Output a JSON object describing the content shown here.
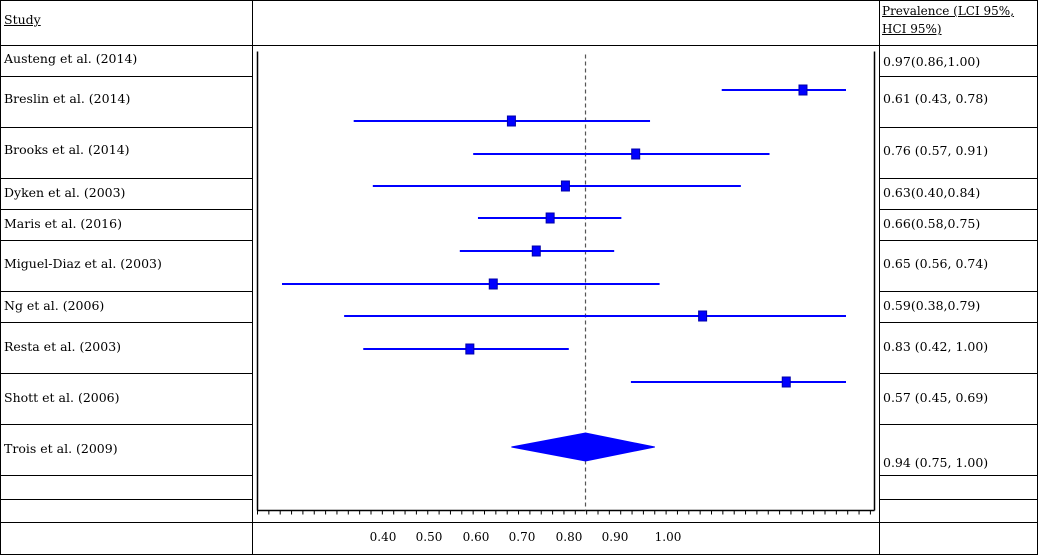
{
  "header": {
    "study_label": "Study",
    "prevalence_label": "Prevalence (LCI 95%, HCI 95%)"
  },
  "studies": [
    {
      "name": "Austeng et al. (2014)",
      "prevalence": "0.97(0.86,1.00)"
    },
    {
      "name": "Breslin et al. (2014)",
      "prevalence": "0.61 (0.43, 0.78)"
    },
    {
      "name": "Brooks et al. (2014)",
      "prevalence": " 0.76 (0.57, 0.91)"
    },
    {
      "name": "Dyken et al. (2003)",
      "prevalence": "0.63(0.40,0.84)"
    },
    {
      "name": "Maris et al. (2016)",
      "prevalence": "0.66(0.58,0.75)"
    },
    {
      "name": "Miguel-Diaz et al. (2003)",
      "prevalence": " 0.65 (0.56, 0.74)"
    },
    {
      "name": "Ng et al. (2006)",
      "prevalence": "0.59(0.38,0.79)"
    },
    {
      "name": "Resta et al. (2003)",
      "prevalence": "0.83 (0.42, 1.00)"
    },
    {
      "name": "Shott et al. (2006)",
      "prevalence": " 0.57 (0.45, 0.69)"
    },
    {
      "name": "Trois et al. (2009)",
      "prevalence": "0.94 (0.75, 1.00)"
    }
  ],
  "colors": {
    "forest_blue": "#0000ff",
    "marker_dark": "#0000aa",
    "grid_line": "#000000",
    "reference_line": "#555555"
  },
  "chart_data": {
    "type": "forest",
    "xticks": [
      "0.40",
      "0.50",
      "0.60",
      "0.70",
      "0.80",
      "0.90",
      "1.00"
    ],
    "x_range": [
      0.22,
      1.4
    ],
    "reference_value": 0.855,
    "rows": [
      {
        "estimate": 1.31,
        "lower": 1.14,
        "upper": 1.4
      },
      {
        "estimate": 0.7,
        "lower": 0.37,
        "upper": 0.99
      },
      {
        "estimate": 0.96,
        "lower": 0.62,
        "upper": 1.24
      },
      {
        "estimate": 0.813,
        "lower": 0.41,
        "upper": 1.18
      },
      {
        "estimate": 0.781,
        "lower": 0.63,
        "upper": 0.93
      },
      {
        "estimate": 0.752,
        "lower": 0.592,
        "upper": 0.915
      },
      {
        "estimate": 0.662,
        "lower": 0.22,
        "upper": 1.01
      },
      {
        "estimate": 1.1,
        "lower": 0.35,
        "upper": 1.4
      },
      {
        "estimate": 0.613,
        "lower": 0.39,
        "upper": 0.82
      },
      {
        "estimate": 1.275,
        "lower": 0.95,
        "upper": 1.4
      }
    ],
    "summary": {
      "estimate": 0.855,
      "lower": 0.7,
      "upper": 1.0
    }
  }
}
